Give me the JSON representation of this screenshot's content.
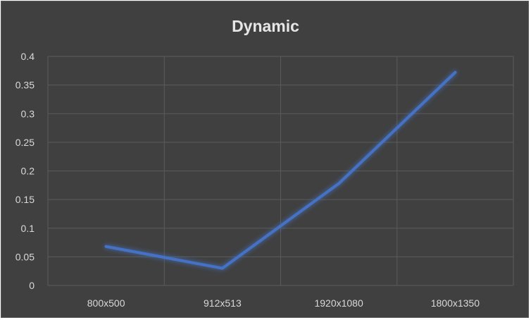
{
  "chart_data": {
    "type": "line",
    "title": "Dynamic",
    "xlabel": "",
    "ylabel": "",
    "categories": [
      "800x500",
      "912x513",
      "1920x1080",
      "1800x1350"
    ],
    "series": [
      {
        "values": [
          0.068,
          0.03,
          0.178,
          0.372
        ]
      }
    ],
    "ylim": [
      0,
      0.4
    ],
    "yticks": [
      "0",
      "0.05",
      "0.1",
      "0.15",
      "0.2",
      "0.25",
      "0.3",
      "0.35",
      "0.4"
    ],
    "grid": true,
    "legend": "none",
    "colors": {
      "background": "#404040",
      "line": "#4472c4",
      "grid": "#5b5b5b",
      "text": "#d9d9d9"
    }
  }
}
